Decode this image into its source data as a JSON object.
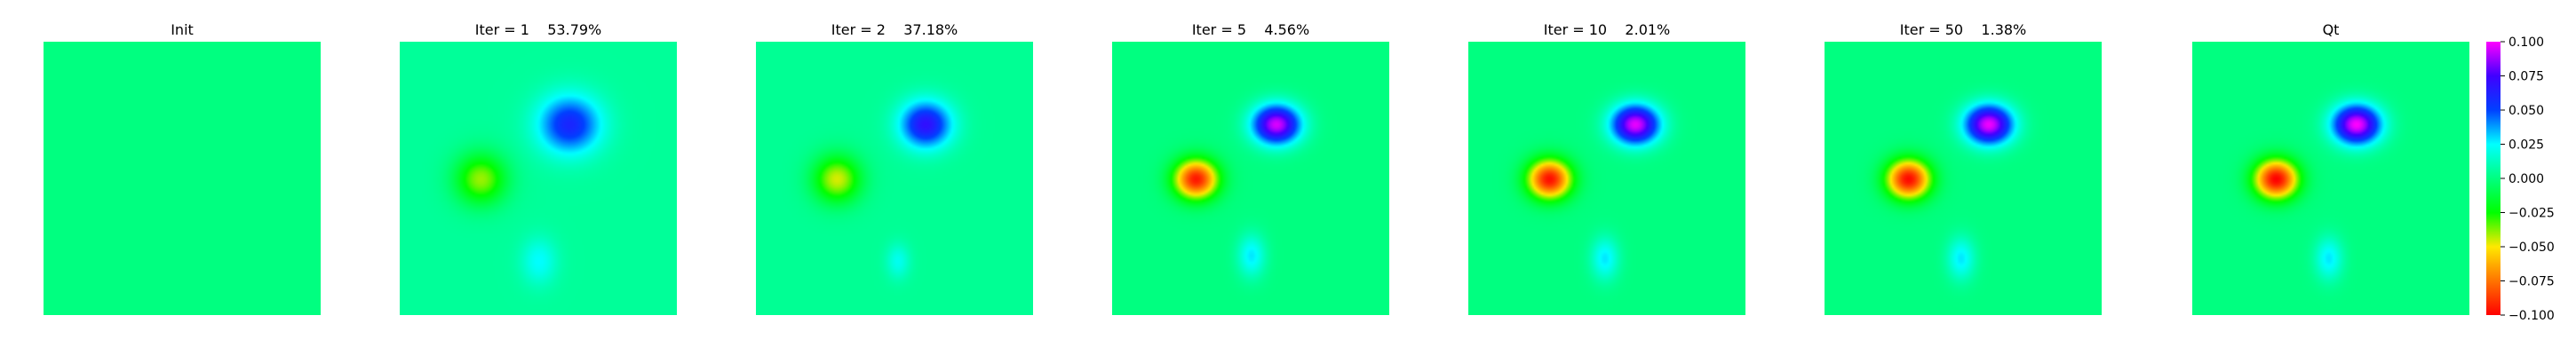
{
  "chart_data": [
    {
      "type": "heatmap",
      "title": "Init",
      "blobs": [],
      "background_value": 0.0
    },
    {
      "type": "heatmap",
      "title": "Iter = 1    53.79%",
      "background_value": 0.005,
      "blobs": [
        {
          "cx": 0.61,
          "cy": 0.3,
          "rx": 0.16,
          "ry": 0.15,
          "peak": 0.055,
          "label": "positive-blob-upper-right"
        },
        {
          "cx": 0.29,
          "cy": 0.5,
          "rx": 0.13,
          "ry": 0.13,
          "peak": -0.045,
          "label": "negative-blob-left"
        },
        {
          "cx": 0.5,
          "cy": 0.8,
          "rx": 0.09,
          "ry": 0.12,
          "peak": 0.02,
          "label": "positive-blob-bottom"
        }
      ]
    },
    {
      "type": "heatmap",
      "title": "Iter = 2    37.18%",
      "background_value": 0.004,
      "blobs": [
        {
          "cx": 0.61,
          "cy": 0.3,
          "rx": 0.13,
          "ry": 0.12,
          "peak": 0.065,
          "label": "positive-blob-upper-right"
        },
        {
          "cx": 0.29,
          "cy": 0.5,
          "rx": 0.12,
          "ry": 0.12,
          "peak": -0.05,
          "label": "negative-blob-left"
        },
        {
          "cx": 0.51,
          "cy": 0.8,
          "rx": 0.06,
          "ry": 0.09,
          "peak": 0.018,
          "label": "positive-blob-bottom"
        }
      ]
    },
    {
      "type": "heatmap",
      "title": "Iter = 5    4.56%",
      "background_value": 0.0,
      "blobs": [
        {
          "cx": 0.59,
          "cy": 0.3,
          "rx": 0.12,
          "ry": 0.1,
          "peak": 0.095,
          "label": "positive-blob-upper-right"
        },
        {
          "cx": 0.3,
          "cy": 0.5,
          "rx": 0.11,
          "ry": 0.1,
          "peak": -0.095,
          "label": "negative-blob-left"
        },
        {
          "cx": 0.5,
          "cy": 0.78,
          "rx": 0.07,
          "ry": 0.11,
          "peak": 0.028,
          "label": "positive-blob-bottom"
        }
      ]
    },
    {
      "type": "heatmap",
      "title": "Iter = 10    2.01%",
      "background_value": 0.0,
      "blobs": [
        {
          "cx": 0.6,
          "cy": 0.3,
          "rx": 0.12,
          "ry": 0.1,
          "peak": 0.097,
          "label": "positive-blob-upper-right"
        },
        {
          "cx": 0.29,
          "cy": 0.5,
          "rx": 0.11,
          "ry": 0.1,
          "peak": -0.097,
          "label": "negative-blob-left"
        },
        {
          "cx": 0.49,
          "cy": 0.79,
          "rx": 0.07,
          "ry": 0.11,
          "peak": 0.028,
          "label": "positive-blob-bottom"
        }
      ]
    },
    {
      "type": "heatmap",
      "title": "Iter = 50    1.38%",
      "background_value": 0.0,
      "blobs": [
        {
          "cx": 0.59,
          "cy": 0.3,
          "rx": 0.12,
          "ry": 0.1,
          "peak": 0.098,
          "label": "positive-blob-upper-right"
        },
        {
          "cx": 0.3,
          "cy": 0.5,
          "rx": 0.11,
          "ry": 0.1,
          "peak": -0.098,
          "label": "negative-blob-left"
        },
        {
          "cx": 0.49,
          "cy": 0.79,
          "rx": 0.07,
          "ry": 0.11,
          "peak": 0.028,
          "label": "positive-blob-bottom"
        }
      ]
    },
    {
      "type": "heatmap",
      "title": "Qt",
      "background_value": 0.0,
      "blobs": [
        {
          "cx": 0.59,
          "cy": 0.3,
          "rx": 0.12,
          "ry": 0.1,
          "peak": 0.1,
          "label": "positive-blob-upper-right"
        },
        {
          "cx": 0.3,
          "cy": 0.5,
          "rx": 0.11,
          "ry": 0.1,
          "peak": -0.1,
          "label": "negative-blob-left"
        },
        {
          "cx": 0.49,
          "cy": 0.79,
          "rx": 0.07,
          "ry": 0.11,
          "peak": 0.028,
          "label": "positive-blob-bottom"
        }
      ]
    }
  ],
  "colorbar": {
    "vmin": -0.1,
    "vmax": 0.1,
    "colormap": "hsv",
    "ticks": [
      0.1,
      0.075,
      0.05,
      0.025,
      0.0,
      -0.025,
      -0.05,
      -0.075,
      -0.1
    ],
    "tick_labels": [
      "0.100",
      "0.075",
      "0.050",
      "0.025",
      "0.000",
      "−0.025",
      "−0.050",
      "−0.075",
      "−0.100"
    ]
  }
}
